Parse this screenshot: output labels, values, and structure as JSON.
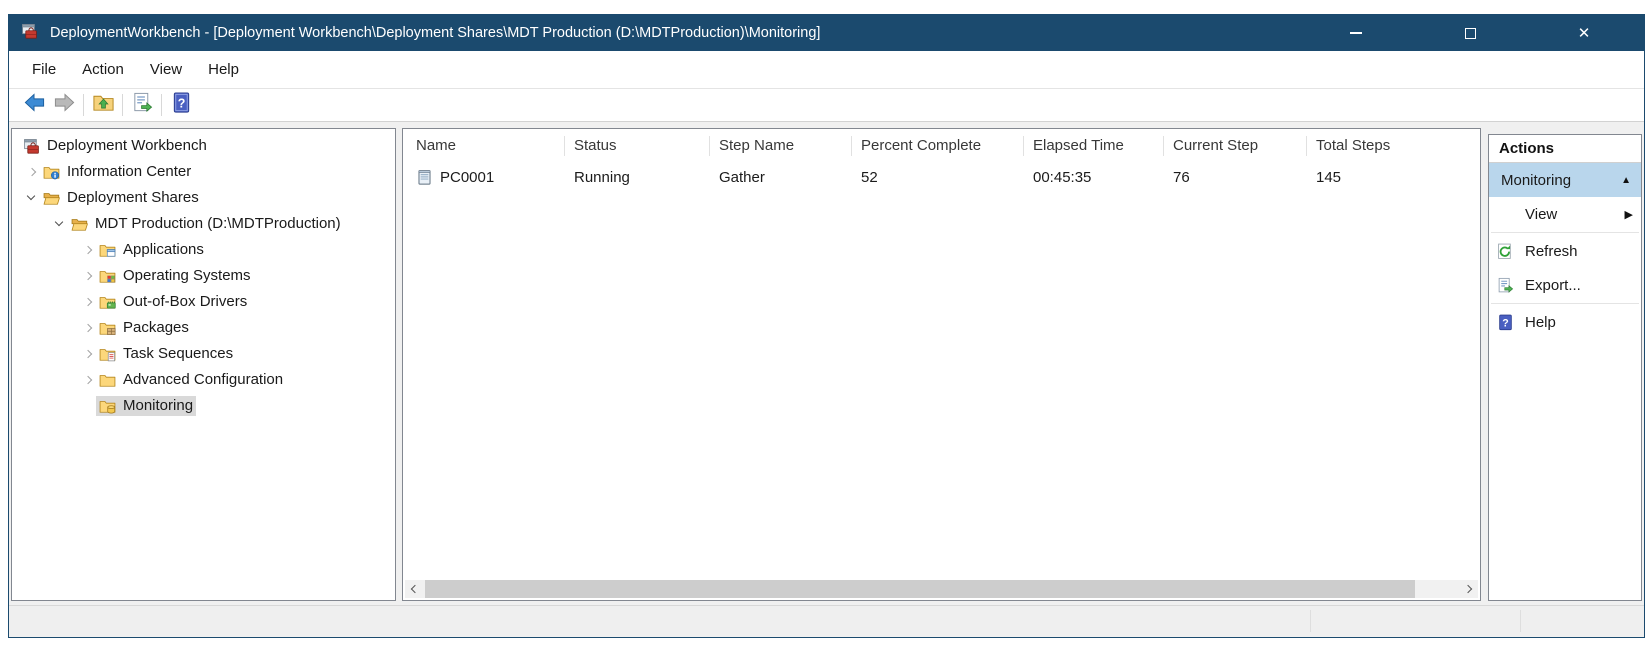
{
  "titlebar": {
    "title": "DeploymentWorkbench - [Deployment Workbench\\Deployment Shares\\MDT Production (D:\\MDTProduction)\\Monitoring]"
  },
  "menubar": {
    "items": [
      "File",
      "Action",
      "View",
      "Help"
    ]
  },
  "toolbar": {
    "buttons": [
      {
        "name": "back-button",
        "icon": "back-arrow-icon",
        "enabled": true,
        "sep_after": false
      },
      {
        "name": "forward-button",
        "icon": "forward-arrow-icon",
        "enabled": false,
        "sep_after": true
      },
      {
        "name": "up-one-level-button",
        "icon": "up-folder-icon",
        "enabled": true,
        "sep_after": true
      },
      {
        "name": "export-list-button",
        "icon": "export-list-icon",
        "enabled": true,
        "sep_after": true
      },
      {
        "name": "help-button",
        "icon": "help-icon",
        "enabled": true,
        "sep_after": false
      }
    ]
  },
  "tree": {
    "items": [
      {
        "label": "Deployment Workbench",
        "level": 0,
        "chevron": "none",
        "icon": "workbench",
        "selected": false
      },
      {
        "label": "Information Center",
        "level": 1,
        "chevron": "collapsed",
        "icon": "folder-info",
        "selected": false
      },
      {
        "label": "Deployment Shares",
        "level": 1,
        "chevron": "expanded",
        "icon": "folder-open",
        "selected": false
      },
      {
        "label": "MDT Production (D:\\MDTProduction)",
        "level": 2,
        "chevron": "expanded",
        "icon": "folder-open",
        "selected": false
      },
      {
        "label": "Applications",
        "level": 3,
        "chevron": "collapsed",
        "icon": "folder-apps",
        "selected": false
      },
      {
        "label": "Operating Systems",
        "level": 3,
        "chevron": "collapsed",
        "icon": "folder-os",
        "selected": false
      },
      {
        "label": "Out-of-Box Drivers",
        "level": 3,
        "chevron": "collapsed",
        "icon": "folder-drivers",
        "selected": false
      },
      {
        "label": "Packages",
        "level": 3,
        "chevron": "collapsed",
        "icon": "folder-packages",
        "selected": false
      },
      {
        "label": "Task Sequences",
        "level": 3,
        "chevron": "collapsed",
        "icon": "folder-tasks",
        "selected": false
      },
      {
        "label": "Advanced Configuration",
        "level": 3,
        "chevron": "collapsed",
        "icon": "folder-plain",
        "selected": false
      },
      {
        "label": "Monitoring",
        "level": 3,
        "chevron": "none",
        "icon": "folder-monitor",
        "selected": true
      }
    ]
  },
  "grid": {
    "columns": [
      "Name",
      "Status",
      "Step Name",
      "Percent Complete",
      "Elapsed Time",
      "Current Step",
      "Total Steps"
    ],
    "rows": [
      {
        "icon": "computer-icon",
        "cells": [
          "PC0001",
          "Running",
          "Gather",
          "52",
          "00:45:35",
          "76",
          "145"
        ]
      }
    ]
  },
  "actions": {
    "title": "Actions",
    "group_label": "Monitoring",
    "group_collapse_icon": "collapse-up-triangle",
    "items": [
      {
        "label": "View",
        "icon": "none",
        "submenu": true,
        "sep_after": true
      },
      {
        "label": "Refresh",
        "icon": "refresh-icon",
        "submenu": false,
        "sep_after": false
      },
      {
        "label": "Export...",
        "icon": "export-icon",
        "submenu": false,
        "sep_after": true
      },
      {
        "label": "Help",
        "icon": "help-icon",
        "submenu": false,
        "sep_after": false
      }
    ]
  },
  "colors": {
    "titlebar_bg": "#1b4a6e",
    "tree_selection_bg": "#d9d9d9",
    "actions_selected_bg": "#b9d6ec",
    "pane_border": "#828790",
    "folder_gold": "#fcd77b",
    "accent_green": "#3fae49",
    "accent_blue": "#3d8bd4"
  }
}
